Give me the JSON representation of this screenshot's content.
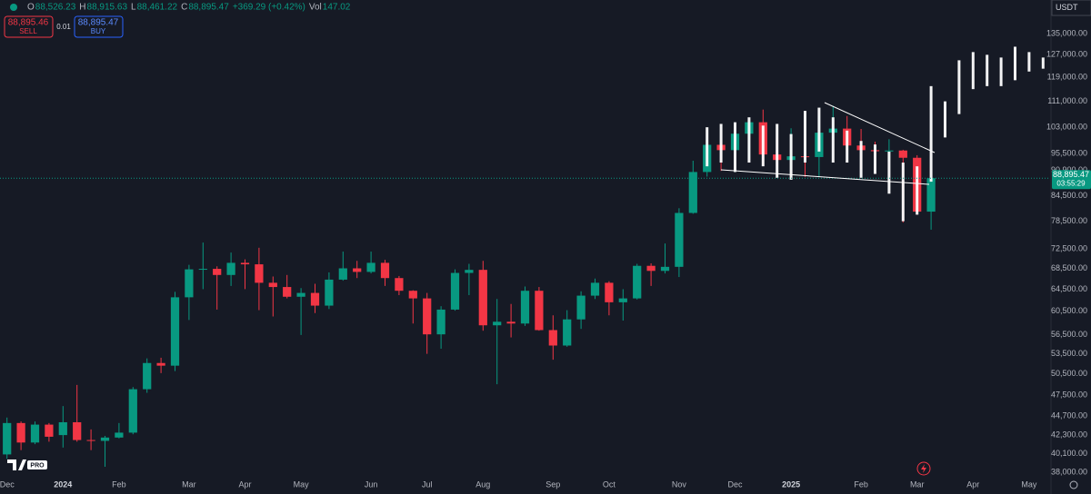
{
  "header": {
    "ohlc": [
      [
        "O",
        "88,526.23"
      ],
      [
        "H",
        "88,915.63"
      ],
      [
        "L",
        "88,461.22"
      ],
      [
        "C",
        "88,895.47"
      ]
    ],
    "change": "+369.29 (+0.42%)",
    "volume": [
      "Vol",
      "147.02"
    ],
    "sell_price": "88,895.46",
    "sell_label": "SELL",
    "quantity": "0.01",
    "buy_price": "88,895.47",
    "buy_label": "BUY",
    "currency": "USDT",
    "logo_badge": "PRO"
  },
  "chart_data": {
    "type": "candlestick",
    "categories": [
      "Dec",
      null,
      null,
      null,
      "2024",
      null,
      null,
      null,
      "Feb",
      null,
      null,
      null,
      null,
      "Mar",
      null,
      null,
      null,
      "Apr",
      null,
      null,
      null,
      "May",
      null,
      null,
      null,
      null,
      "Jun",
      null,
      null,
      null,
      "Jul",
      null,
      null,
      null,
      "Aug",
      null,
      null,
      null,
      null,
      "Sep",
      null,
      null,
      null,
      "Oct",
      null,
      null,
      null,
      null,
      "Nov",
      null,
      null,
      null,
      "Dec",
      null,
      null,
      null,
      "2025",
      null,
      null,
      null,
      null,
      "Feb",
      null,
      null,
      null,
      "Mar",
      null,
      null,
      null,
      "Apr",
      null,
      null,
      null,
      "May",
      null
    ],
    "open": [
      40000,
      43800,
      41400,
      43600,
      42300,
      43900,
      41700,
      41600,
      42000,
      42600,
      48300,
      52100,
      51700,
      63000,
      68300,
      68400,
      67200,
      69600,
      69300,
      65700,
      64900,
      63100,
      63800,
      61500,
      66300,
      68500,
      67800,
      69600,
      66600,
      64200,
      62800,
      56600,
      60800,
      67600,
      68200,
      58100,
      58700,
      58400,
      64200,
      57300,
      54800,
      59100,
      63300,
      65700,
      62100,
      62800,
      69000,
      68000,
      68800,
      80400,
      90500,
      97900,
      96400,
      101100,
      104500,
      95200,
      93700,
      94700,
      94500,
      101400,
      102600,
      97700,
      96400,
      96100,
      96300,
      94300,
      80700,
      null,
      null,
      null,
      null,
      null,
      null,
      null,
      null
    ],
    "high": [
      44500,
      44000,
      44000,
      43800,
      46000,
      48900,
      43000,
      42200,
      43800,
      48600,
      52800,
      52900,
      64000,
      69200,
      73800,
      68900,
      71700,
      70300,
      72700,
      66900,
      67200,
      64700,
      65500,
      67700,
      71900,
      70000,
      71900,
      70200,
      67000,
      64300,
      63800,
      61400,
      68300,
      69400,
      70000,
      62700,
      61800,
      65000,
      64900,
      59800,
      60700,
      64100,
      66500,
      66000,
      64500,
      69400,
      69500,
      73600,
      81500,
      93500,
      99600,
      98500,
      104000,
      105200,
      108400,
      99900,
      102700,
      102500,
      106500,
      109600,
      106400,
      102500,
      98800,
      99500,
      96500,
      95000,
      89000,
      null,
      null,
      null,
      null,
      null,
      null,
      null,
      null
    ],
    "low": [
      39500,
      40500,
      41200,
      41500,
      40800,
      41500,
      40500,
      38600,
      41900,
      42400,
      47800,
      50600,
      50900,
      59000,
      64500,
      60800,
      65100,
      64500,
      60700,
      59600,
      62800,
      56500,
      60200,
      60900,
      66100,
      66600,
      67500,
      65100,
      63400,
      58400,
      53500,
      54300,
      60600,
      63400,
      57200,
      49000,
      56100,
      58000,
      57200,
      52600,
      54600,
      57500,
      62700,
      59800,
      58900,
      62600,
      65100,
      67500,
      66800,
      80200,
      89300,
      90800,
      90500,
      94200,
      92200,
      92000,
      91200,
      89200,
      89300,
      99500,
      96200,
      91200,
      94100,
      93400,
      78200,
      80000,
      76600,
      null,
      null,
      null,
      null,
      null,
      null,
      null,
      null
    ],
    "close": [
      43800,
      41400,
      43600,
      42100,
      43900,
      41700,
      41600,
      42000,
      42600,
      48300,
      52100,
      51700,
      63000,
      68300,
      68400,
      67200,
      69600,
      69300,
      65700,
      64900,
      63100,
      63800,
      61500,
      66300,
      68500,
      67800,
      69600,
      66600,
      64200,
      62800,
      56600,
      60800,
      67600,
      68200,
      58100,
      58700,
      58400,
      64200,
      57300,
      54800,
      59100,
      63300,
      65700,
      62100,
      62800,
      69000,
      68000,
      68800,
      80400,
      90500,
      97900,
      96400,
      101100,
      104500,
      95200,
      93700,
      94700,
      94500,
      101400,
      102600,
      97700,
      96400,
      96100,
      96300,
      94300,
      80700,
      88895.47,
      null,
      null,
      null,
      null,
      null,
      null,
      null,
      null
    ],
    "up_color": "#089981",
    "down_color": "#f23645",
    "overlay": {
      "color": "#ffffff",
      "high": [
        null,
        null,
        null,
        null,
        null,
        null,
        null,
        null,
        null,
        null,
        null,
        null,
        null,
        null,
        null,
        null,
        null,
        null,
        null,
        null,
        null,
        null,
        null,
        null,
        null,
        null,
        null,
        null,
        null,
        null,
        null,
        null,
        null,
        null,
        null,
        null,
        null,
        null,
        null,
        null,
        null,
        null,
        null,
        null,
        null,
        null,
        null,
        null,
        null,
        null,
        103000,
        104000,
        104500,
        106000,
        103500,
        104000,
        101000,
        108000,
        109000,
        106000,
        102000,
        99000,
        98000,
        96000,
        93000,
        92000,
        116000,
        111000,
        125000,
        128000,
        127000,
        126000,
        130000,
        128000,
        126000
      ],
      "low": [
        null,
        null,
        null,
        null,
        null,
        null,
        null,
        null,
        null,
        null,
        null,
        null,
        null,
        null,
        null,
        null,
        null,
        null,
        null,
        null,
        null,
        null,
        null,
        null,
        null,
        null,
        null,
        null,
        null,
        null,
        null,
        null,
        null,
        null,
        null,
        null,
        null,
        null,
        null,
        null,
        null,
        null,
        null,
        null,
        null,
        null,
        null,
        null,
        null,
        null,
        92000,
        93000,
        90500,
        93000,
        92000,
        89000,
        88500,
        93000,
        96000,
        93000,
        93000,
        89000,
        90000,
        85000,
        78500,
        80000,
        88000,
        100000,
        107000,
        115000,
        116000,
        116000,
        118000,
        121000,
        122000
      ]
    },
    "log_scale": true,
    "grid": false,
    "ylim": [
      37500,
      148800
    ],
    "yticks": [
      {
        "value": 135000,
        "label": "135,000.00"
      },
      {
        "value": 127000,
        "label": "127,000.00"
      },
      {
        "value": 119000,
        "label": "119,000.00"
      },
      {
        "value": 111000,
        "label": "111,000.00"
      },
      {
        "value": 103000,
        "label": "103,000.00"
      },
      {
        "value": 95500,
        "label": "95,500.00"
      },
      {
        "value": 90900,
        "label": "90,900.00"
      },
      {
        "value": 84500,
        "label": "84,500.00"
      },
      {
        "value": 78500,
        "label": "78,500.00"
      },
      {
        "value": 72500,
        "label": "72,500.00"
      },
      {
        "value": 68500,
        "label": "68,500.00"
      },
      {
        "value": 64500,
        "label": "64,500.00"
      },
      {
        "value": 60500,
        "label": "60,500.00"
      },
      {
        "value": 56500,
        "label": "56,500.00"
      },
      {
        "value": 53500,
        "label": "53,500.00"
      },
      {
        "value": 50500,
        "label": "50,500.00"
      },
      {
        "value": 47500,
        "label": "47,500.00"
      },
      {
        "value": 44700,
        "label": "44,700.00"
      },
      {
        "value": 42300,
        "label": "42,300.00"
      },
      {
        "value": 40100,
        "label": "40,100.00"
      },
      {
        "value": 38000,
        "label": "38,000.00"
      }
    ],
    "last_price": {
      "value": 88895.47,
      "label": "88,895.47"
    },
    "countdown": "03:55:29"
  }
}
